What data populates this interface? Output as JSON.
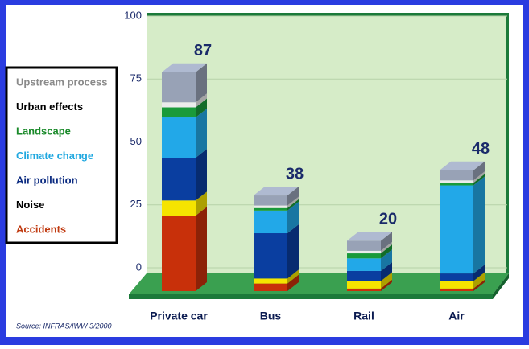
{
  "chart_data": {
    "type": "stacked_bar_3d",
    "categories": [
      "Private car",
      "Bus",
      "Rail",
      "Air"
    ],
    "series": [
      {
        "name": "Accidents",
        "color": "#c8300a",
        "label_color": "#c03a10",
        "values": [
          30,
          3,
          1,
          1
        ]
      },
      {
        "name": "Noise",
        "color": "#f5e400",
        "label_color": "#000000",
        "values": [
          6,
          2,
          3,
          3
        ]
      },
      {
        "name": "Air pollution",
        "color": "#0a3ea0",
        "label_color": "#0a2a80",
        "values": [
          17,
          18,
          4,
          3
        ]
      },
      {
        "name": "Climate change",
        "color": "#22a8e8",
        "label_color": "#20a8e0",
        "values": [
          16,
          9,
          5,
          35
        ]
      },
      {
        "name": "Landscape",
        "color": "#1a9a3a",
        "label_color": "#1a8a2a",
        "values": [
          4,
          1,
          2,
          1
        ]
      },
      {
        "name": "Urban effects",
        "color": "#ececec",
        "label_color": "#000000",
        "values": [
          2,
          1,
          1,
          1
        ]
      },
      {
        "name": "Upstream process",
        "color": "#98a2b6",
        "label_color": "#8a8a8a",
        "values": [
          12,
          4,
          4,
          4
        ]
      }
    ],
    "total_labels": [
      "87",
      "38",
      "20",
      "48"
    ],
    "ylim": [
      0,
      100
    ],
    "yticks": [
      0,
      25,
      50,
      75,
      100
    ],
    "grid": true,
    "source": "Source: INFRAS/IWW 3/2000"
  }
}
